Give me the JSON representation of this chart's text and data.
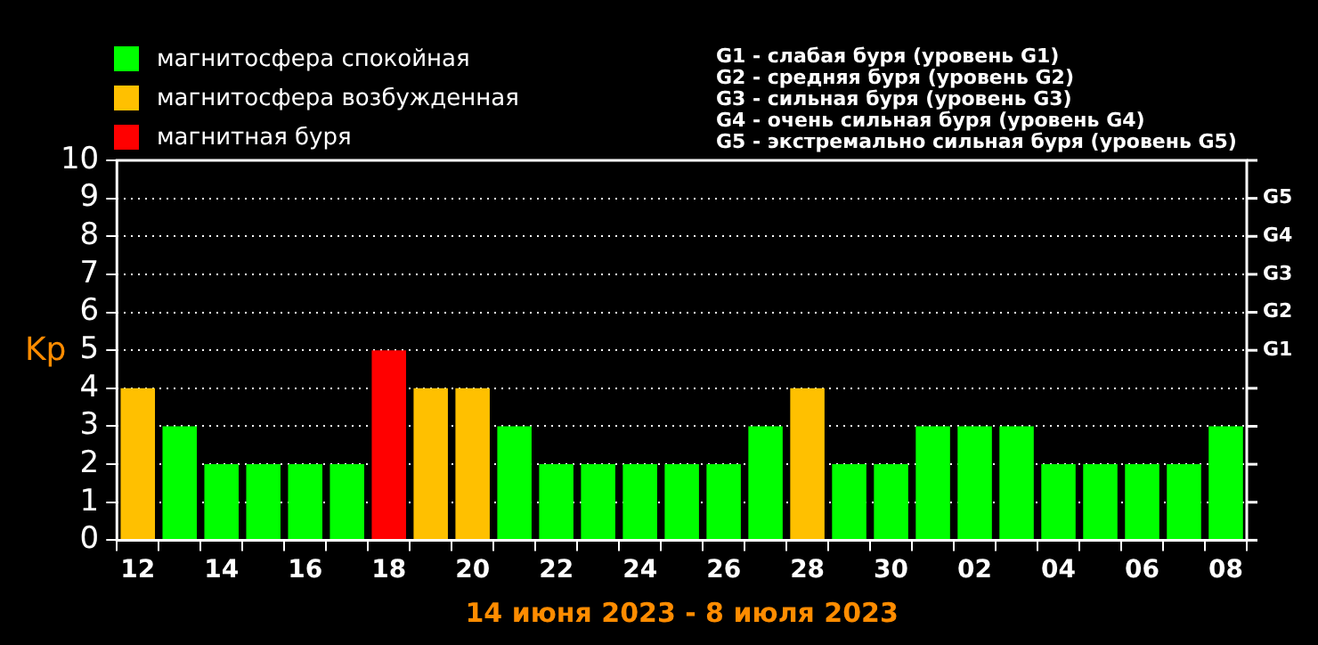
{
  "chart_data": {
    "type": "bar",
    "xlabel": "14 июня 2023 - 8 июля 2023",
    "ylabel": "Kp",
    "categories": [
      "12",
      null,
      "14",
      null,
      "16",
      null,
      "18",
      null,
      "20",
      null,
      "22",
      null,
      "24",
      null,
      "26",
      null,
      "28",
      null,
      "30",
      null,
      "02",
      null,
      "04",
      null,
      "06",
      null,
      "08"
    ],
    "series": [
      {
        "name": "магнитосфера спокойная",
        "color": "#00ff00",
        "values": [
          null,
          3,
          2,
          2,
          2,
          2,
          null,
          null,
          null,
          3,
          2,
          2,
          2,
          2,
          2,
          3,
          null,
          2,
          2,
          3,
          3,
          3,
          2,
          2,
          2,
          2,
          3
        ]
      },
      {
        "name": "магнитосфера возбужденная",
        "color": "#ffc000",
        "values": [
          4,
          null,
          null,
          null,
          null,
          null,
          null,
          4,
          4,
          null,
          null,
          null,
          null,
          null,
          null,
          null,
          4,
          null,
          null,
          null,
          null,
          null,
          null,
          null,
          null,
          null,
          null
        ]
      },
      {
        "name": "магнитная буря",
        "color": "#ff0000",
        "values": [
          null,
          null,
          null,
          null,
          null,
          null,
          5,
          null,
          null,
          null,
          null,
          null,
          null,
          null,
          null,
          null,
          null,
          null,
          null,
          null,
          null,
          null,
          null,
          null,
          null,
          null,
          null
        ]
      }
    ],
    "stacked": true,
    "ylim": [
      0,
      10
    ],
    "yticks": [
      0,
      1,
      2,
      3,
      4,
      5,
      6,
      7,
      8,
      9,
      10
    ],
    "grid": "y",
    "legend": "top left",
    "annotations": [
      "G1 - слабая буря (уровень G1)",
      "G2 - средняя буря (уровень G2)",
      "G3 - сильная буря (уровень G3)",
      "G4 - очень сильная буря (уровень G4)",
      "G5 - экстремально сильная буря (уровень G5)",
      "G1",
      "G2",
      "G3",
      "G4",
      "G5"
    ]
  }
}
